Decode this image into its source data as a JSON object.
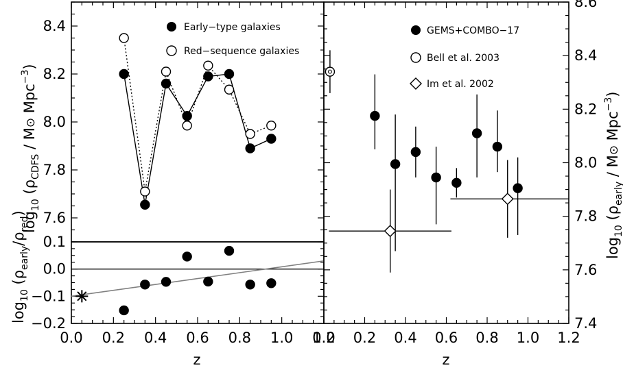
{
  "chart_data": [
    {
      "panel": "top-left",
      "type": "line",
      "xlabel": "",
      "ylabel": "log10 (ρCDFS / M⊙ Mpc⁻³)",
      "xlim": [
        0.0,
        1.2
      ],
      "ylim": [
        7.5,
        8.5
      ],
      "yticks": [
        "7.6",
        "7.8",
        "8.0",
        "8.2",
        "8.4"
      ],
      "legend_position": "top-right",
      "series": [
        {
          "name": "Early−type galaxies",
          "marker": "filled-circle",
          "line": "solid",
          "x": [
            0.25,
            0.35,
            0.45,
            0.55,
            0.65,
            0.75,
            0.85,
            0.95
          ],
          "y": [
            8.2,
            7.655,
            8.16,
            8.025,
            8.19,
            8.2,
            7.89,
            7.93
          ]
        },
        {
          "name": "Red−sequence galaxies",
          "marker": "open-circle",
          "line": "dotted",
          "x": [
            0.25,
            0.35,
            0.45,
            0.55,
            0.65,
            0.75,
            0.85,
            0.95
          ],
          "y": [
            8.35,
            7.71,
            8.21,
            7.985,
            8.235,
            8.135,
            7.95,
            7.985
          ]
        }
      ]
    },
    {
      "panel": "bottom-left",
      "type": "scatter",
      "xlabel": "z",
      "ylabel": "log10 (ρearly/ρred)",
      "xlim": [
        0.0,
        1.2
      ],
      "ylim": [
        -0.2,
        0.1
      ],
      "xticks": [
        "0.0",
        "0.2",
        "0.4",
        "0.6",
        "0.8",
        "1.0",
        "1.2"
      ],
      "yticks": [
        "−0.2",
        "−0.1",
        "0.0",
        "0.1"
      ],
      "reference_line_y": 0.0,
      "series": [
        {
          "marker": "filled-circle",
          "x": [
            0.25,
            0.35,
            0.45,
            0.55,
            0.65,
            0.75,
            0.85,
            0.95
          ],
          "y": [
            -0.152,
            -0.057,
            -0.047,
            0.046,
            -0.046,
            0.067,
            -0.057,
            -0.052
          ]
        },
        {
          "marker": "asterisk",
          "x": [
            0.05
          ],
          "y": [
            -0.1
          ]
        },
        {
          "marker": "none",
          "line": "grey-solid",
          "x": [
            0.0,
            1.2
          ],
          "y": [
            -0.1,
            0.03
          ]
        }
      ]
    },
    {
      "panel": "right",
      "type": "scatter",
      "xlabel": "z",
      "ylabel": "log10 (ρearly / M⊙ Mpc⁻³)",
      "xlim": [
        0.0,
        1.2
      ],
      "ylim": [
        7.4,
        8.6
      ],
      "xticks": [
        "0.0",
        "0.2",
        "0.4",
        "0.6",
        "0.8",
        "1.0",
        "1.2"
      ],
      "yticks": [
        "7.4",
        "7.6",
        "7.8",
        "8.0",
        "8.2",
        "8.4",
        "8.6"
      ],
      "legend_position": "top-right",
      "series": [
        {
          "name": "GEMS+COMBO−17",
          "marker": "filled-circle",
          "x": [
            0.25,
            0.35,
            0.45,
            0.55,
            0.65,
            0.75,
            0.85,
            0.95
          ],
          "y": [
            8.175,
            7.995,
            8.04,
            7.945,
            7.925,
            8.11,
            8.06,
            7.905
          ],
          "yerr_low": [
            0.125,
            0.325,
            0.095,
            0.175,
            0.055,
            0.165,
            0.095,
            0.175
          ],
          "yerr_high": [
            0.155,
            0.185,
            0.095,
            0.115,
            0.055,
            0.145,
            0.135,
            0.115
          ]
        },
        {
          "name": "Bell et al. 2003",
          "marker": "open-circle",
          "x": [
            0.03
          ],
          "y": [
            8.34
          ],
          "yerr_low": [
            0.08
          ],
          "yerr_high": [
            0.08
          ]
        },
        {
          "name": "Im et al. 2002",
          "marker": "open-diamond",
          "x": [
            0.325,
            0.9
          ],
          "y": [
            7.745,
            7.865
          ],
          "xerr_low": [
            0.3,
            0.28
          ],
          "xerr_high": [
            0.3,
            0.35
          ],
          "yerr_low": [
            0.155,
            0.145
          ],
          "yerr_high": [
            0.155,
            0.145
          ]
        }
      ]
    }
  ]
}
